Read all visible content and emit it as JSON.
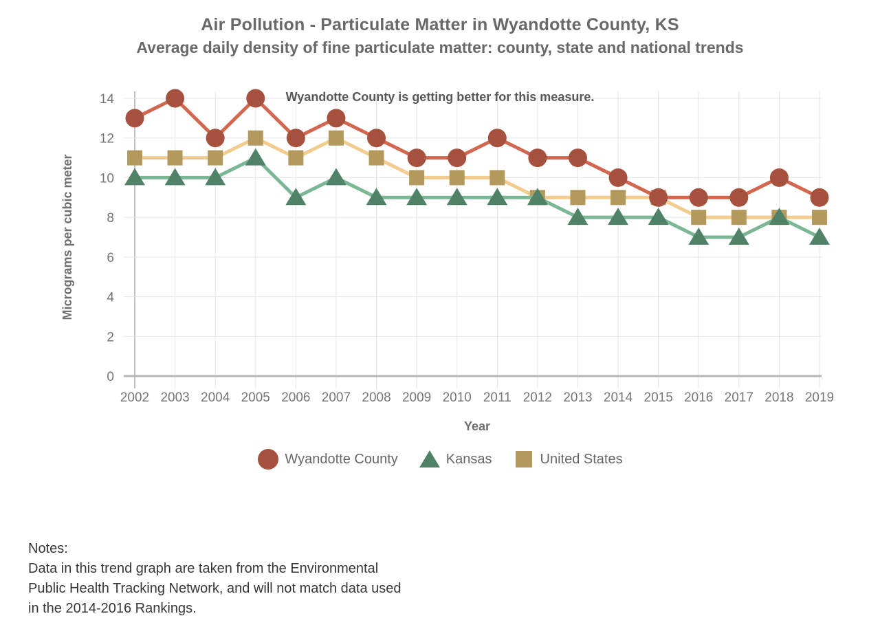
{
  "title": "Air Pollution - Particulate Matter in Wyandotte County, KS",
  "subtitle": "Average daily density of fine particulate matter: county, state and national trends",
  "chart_data": {
    "type": "line",
    "annotation": "Wyandotte County is getting better for this measure.",
    "xlabel": "Year",
    "ylabel": "Micrograms per cubic meter",
    "categories": [
      "2002",
      "2003",
      "2004",
      "2005",
      "2006",
      "2007",
      "2008",
      "2009",
      "2010",
      "2011",
      "2012",
      "2013",
      "2014",
      "2015",
      "2016",
      "2017",
      "2018",
      "2019"
    ],
    "series": [
      {
        "name": "Wyandotte County",
        "marker": "circle",
        "marker_color": "#A6503E",
        "line_color": "#D2664E",
        "values": [
          13,
          14,
          12,
          14,
          12,
          13,
          12,
          11,
          11,
          12,
          11,
          11,
          10,
          9,
          9,
          9,
          10,
          9
        ]
      },
      {
        "name": "Kansas",
        "marker": "triangle",
        "marker_color": "#4F8266",
        "line_color": "#7CB795",
        "values": [
          10,
          10,
          10,
          11,
          9,
          10,
          9,
          9,
          9,
          9,
          9,
          8,
          8,
          8,
          7,
          7,
          8,
          7
        ]
      },
      {
        "name": "United States",
        "marker": "square",
        "marker_color": "#B3995C",
        "line_color": "#F2CC8F",
        "values": [
          11,
          11,
          11,
          12,
          11,
          12,
          11,
          10,
          10,
          10,
          9,
          9,
          9,
          9,
          8,
          8,
          8,
          8
        ]
      }
    ],
    "ylim": [
      0,
      14
    ],
    "yticks": [
      0,
      2,
      4,
      6,
      8,
      10,
      12,
      14
    ],
    "grid": true,
    "legend_position": "bottom",
    "colors": {
      "gridline": "#e4e4e4",
      "first_gridline": "#ababab",
      "axis_line": "#b5b5b5",
      "tick_text": "#757575",
      "axis_title_text": "#6f6f6f",
      "annotation_text": "#58585a"
    }
  },
  "notes": {
    "heading": "Notes:",
    "line1": "Data in this trend graph are taken from the Environmental",
    "line2": "Public Health Tracking Network, and will not match data used",
    "line3": "in the 2014-2016 Rankings."
  }
}
